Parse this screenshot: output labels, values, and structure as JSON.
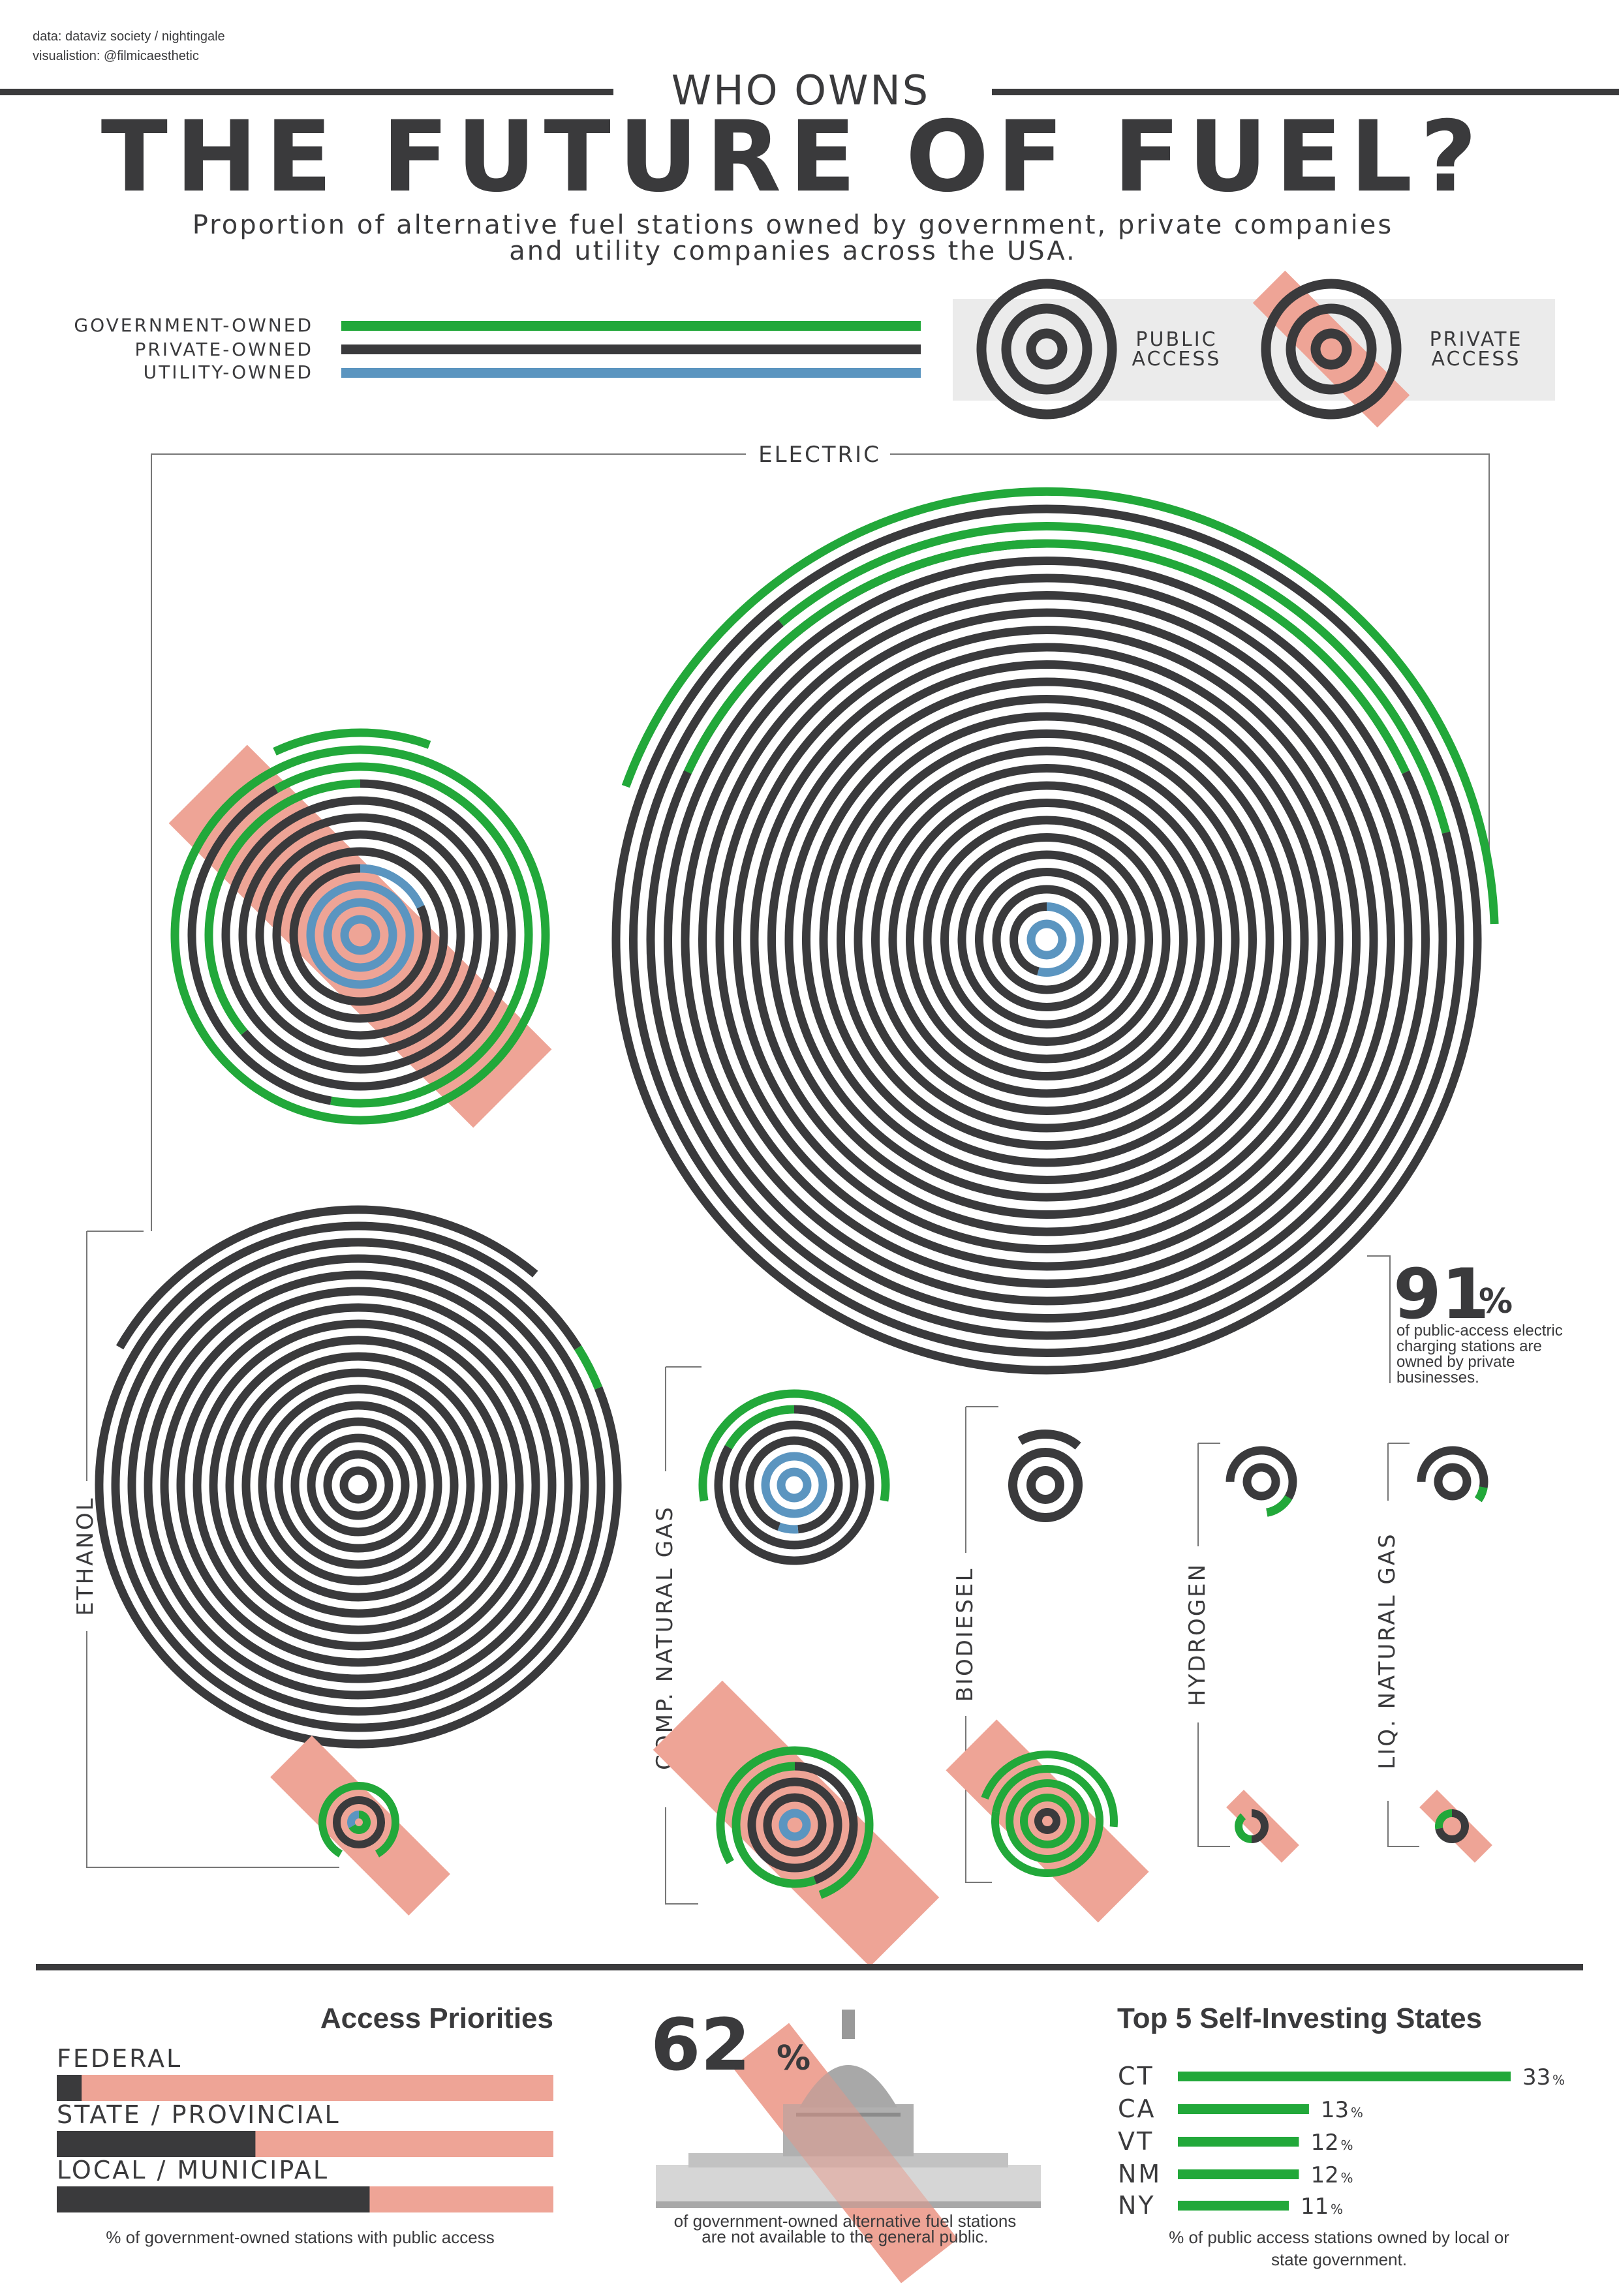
{
  "credits": {
    "data": "data: dataviz society / nightingale",
    "visualisation": "visualistion: @filmicaesthetic"
  },
  "title": {
    "kicker": "WHO OWNS",
    "main": "THE FUTURE OF FUEL?"
  },
  "subtitle": {
    "line1": "Proportion of alternative fuel stations owned by government, private companies",
    "line2": "and utility companies across the USA."
  },
  "legend": {
    "government": "GOVERNMENT-OWNED",
    "private": "PRIVATE-OWNED",
    "utility": "UTILITY-OWNED",
    "public_access": [
      "PUBLIC",
      "ACCESS"
    ],
    "private_access": [
      "PRIVATE",
      "ACCESS"
    ]
  },
  "colors": {
    "government": "#22a83a",
    "private": "#3a3a3c",
    "utility": "#5b95c0",
    "private_access_band": "#eea496",
    "panel": "#ebebeb"
  },
  "chart_data": {
    "type": "concentric-ring",
    "series_colors": [
      "government",
      "private",
      "utility"
    ],
    "fuels": [
      {
        "name": "ELECTRIC",
        "public_rings": 26,
        "private_rings": 12
      },
      {
        "name": "ETHANOL",
        "public_rings": 17,
        "private_rings": 3
      },
      {
        "name": "COMP. NATURAL GAS",
        "public_rings": 6,
        "private_rings": 5
      },
      {
        "name": "BIODIESEL",
        "public_rings": 3,
        "private_rings": 5
      },
      {
        "name": "HYDROGEN",
        "public_rings": 2,
        "private_rings": 1
      },
      {
        "name": "LIQ. NATURAL GAS",
        "public_rings": 2,
        "private_rings": 1
      }
    ]
  },
  "callout_electric": {
    "value": "91",
    "unit": "%",
    "text": [
      "of public-access electric",
      "charging stations are",
      "owned by private",
      "businesses."
    ]
  },
  "access_priorities": {
    "title": "Access Priorities",
    "bars": [
      {
        "label": "FEDERAL",
        "value": 5
      },
      {
        "label": "STATE / PROVINCIAL",
        "value": 40
      },
      {
        "label": "LOCAL / MUNICIPAL",
        "value": 63
      }
    ],
    "caption": "% of government-owned stations with public access"
  },
  "not_public": {
    "value": "62",
    "unit": "%",
    "caption": [
      "of government-owned alternative fuel stations",
      "are not available to the general public."
    ]
  },
  "top_states": {
    "title": "Top 5 Self-Investing States",
    "states": [
      {
        "state": "CT",
        "value": 33,
        "label": "33"
      },
      {
        "state": "CA",
        "value": 13,
        "label": "13"
      },
      {
        "state": "VT",
        "value": 12,
        "label": "12"
      },
      {
        "state": "NM",
        "value": 12,
        "label": "12"
      },
      {
        "state": "NY",
        "value": 11,
        "label": "11"
      }
    ],
    "pct": "%",
    "caption": [
      "% of public access stations owned by local or",
      "state government."
    ]
  }
}
